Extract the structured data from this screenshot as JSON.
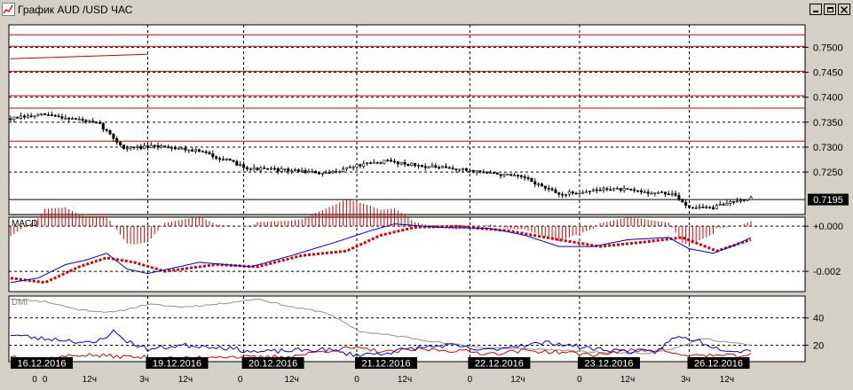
{
  "window": {
    "title": "График AUD /USD  ЧАС",
    "minimize_label": "_",
    "maximize_label": "□",
    "close_label": "×"
  },
  "colors": {
    "background": "#d4d0c8",
    "panel_background": "#ffffff",
    "resistance_line": "#cc0000",
    "candles": "#000000",
    "macd_line": "#0000cc",
    "macd_signal": "#dd0000",
    "macd_histogram": "#dd0000",
    "dmi_adx": "#909090",
    "dmi_plus": "#0000cc",
    "dmi_minus": "#dd0000",
    "date_label_bg": "#000000",
    "date_label_text": "#ffffff"
  },
  "chart_data": {
    "type": "candlestick",
    "symbol": "AUD/USD",
    "timeframe": "ЧАС",
    "price_panel": {
      "ylim": [
        0.7165,
        0.7545
      ],
      "tick_labels": [
        "0.7500",
        "0.7450",
        "0.7400",
        "0.7350",
        "0.7300",
        "0.7250"
      ],
      "tick_values": [
        0.75,
        0.745,
        0.74,
        0.735,
        0.73,
        0.725
      ],
      "current_price_label": "0.7195",
      "current_price": 0.7195,
      "horizontal_levels": [
        0.7525,
        0.7502,
        0.7452,
        0.7403,
        0.7378,
        0.7312
      ],
      "trendline": {
        "from": {
          "bar": 0,
          "price": 0.7477
        },
        "to": {
          "bar": 40,
          "price": 0.7486
        }
      },
      "anchors": [
        [
          0,
          0.7357
        ],
        [
          10,
          0.7365
        ],
        [
          20,
          0.7355
        ],
        [
          26,
          0.7345
        ],
        [
          33,
          0.7298
        ],
        [
          45,
          0.7302
        ],
        [
          55,
          0.7292
        ],
        [
          70,
          0.7257
        ],
        [
          85,
          0.7252
        ],
        [
          92,
          0.7246
        ],
        [
          100,
          0.7262
        ],
        [
          110,
          0.7272
        ],
        [
          120,
          0.7262
        ],
        [
          130,
          0.7256
        ],
        [
          138,
          0.725
        ],
        [
          150,
          0.7238
        ],
        [
          160,
          0.7205
        ],
        [
          175,
          0.7217
        ],
        [
          185,
          0.721
        ],
        [
          193,
          0.7206
        ],
        [
          198,
          0.718
        ],
        [
          205,
          0.7178
        ],
        [
          212,
          0.7195
        ],
        [
          216,
          0.7197
        ]
      ]
    },
    "macd_panel": {
      "label": "MACD",
      "ylim": [
        -0.0029,
        0.0004
      ],
      "tick_labels": [
        "+0.000",
        "-0.002"
      ],
      "tick_values": [
        0.0,
        -0.002
      ],
      "macd_anchors": [
        [
          0,
          -0.0025
        ],
        [
          8,
          -0.0023
        ],
        [
          16,
          -0.0017
        ],
        [
          22,
          -0.0015
        ],
        [
          28,
          -0.0012
        ],
        [
          34,
          -0.0019
        ],
        [
          40,
          -0.0021
        ],
        [
          55,
          -0.0016
        ],
        [
          70,
          -0.0018
        ],
        [
          82,
          -0.0013
        ],
        [
          95,
          -0.0007
        ],
        [
          105,
          -0.0002
        ],
        [
          112,
          0.0001
        ],
        [
          125,
          -5e-05
        ],
        [
          140,
          -0.0001
        ],
        [
          150,
          -0.0004
        ],
        [
          160,
          -0.0009
        ],
        [
          170,
          -0.0009
        ],
        [
          180,
          -0.0006
        ],
        [
          192,
          -0.0005
        ],
        [
          198,
          -0.001
        ],
        [
          205,
          -0.0012
        ],
        [
          212,
          -0.0008
        ],
        [
          216,
          -0.0005
        ]
      ],
      "signal_anchors": [
        [
          0,
          -0.0023
        ],
        [
          10,
          -0.0025
        ],
        [
          20,
          -0.0018
        ],
        [
          28,
          -0.0014
        ],
        [
          36,
          -0.0016
        ],
        [
          45,
          -0.002
        ],
        [
          60,
          -0.0017
        ],
        [
          72,
          -0.0018
        ],
        [
          85,
          -0.0013
        ],
        [
          98,
          -0.0011
        ],
        [
          108,
          -0.0004
        ],
        [
          118,
          -5e-05
        ],
        [
          130,
          0.0
        ],
        [
          145,
          -0.0002
        ],
        [
          160,
          -0.0006
        ],
        [
          172,
          -0.0009
        ],
        [
          185,
          -0.0007
        ],
        [
          196,
          -0.0005
        ],
        [
          206,
          -0.0011
        ],
        [
          216,
          -0.0006
        ]
      ]
    },
    "dmi_panel": {
      "label": "DMI",
      "ylim": [
        8,
        56
      ],
      "tick_labels": [
        "40",
        "20"
      ],
      "tick_values": [
        40,
        20
      ],
      "adx_anchors": [
        [
          0,
          54
        ],
        [
          10,
          52
        ],
        [
          20,
          46
        ],
        [
          30,
          44
        ],
        [
          40,
          50
        ],
        [
          50,
          48
        ],
        [
          60,
          50
        ],
        [
          72,
          54
        ],
        [
          82,
          48
        ],
        [
          92,
          44
        ],
        [
          102,
          30
        ],
        [
          115,
          26
        ],
        [
          128,
          21
        ],
        [
          140,
          18
        ],
        [
          155,
          17
        ],
        [
          170,
          15
        ],
        [
          185,
          14
        ],
        [
          194,
          18
        ],
        [
          202,
          25
        ],
        [
          210,
          22
        ],
        [
          216,
          20
        ]
      ],
      "plus_anchors": [
        [
          0,
          28
        ],
        [
          8,
          25
        ],
        [
          16,
          24
        ],
        [
          24,
          21
        ],
        [
          30,
          30
        ],
        [
          34,
          23
        ],
        [
          40,
          17
        ],
        [
          50,
          20
        ],
        [
          60,
          19
        ],
        [
          72,
          15
        ],
        [
          82,
          16
        ],
        [
          92,
          17
        ],
        [
          100,
          13
        ],
        [
          108,
          14
        ],
        [
          118,
          18
        ],
        [
          128,
          20
        ],
        [
          138,
          16
        ],
        [
          148,
          20
        ],
        [
          158,
          22
        ],
        [
          168,
          18
        ],
        [
          178,
          16
        ],
        [
          188,
          15
        ],
        [
          194,
          26
        ],
        [
          200,
          24
        ],
        [
          206,
          18
        ],
        [
          212,
          16
        ],
        [
          216,
          16
        ]
      ],
      "minus_anchors": [
        [
          0,
          12
        ],
        [
          10,
          10
        ],
        [
          20,
          13
        ],
        [
          30,
          12
        ],
        [
          40,
          11
        ],
        [
          50,
          10
        ],
        [
          60,
          12
        ],
        [
          72,
          11
        ],
        [
          82,
          12
        ],
        [
          92,
          16
        ],
        [
          100,
          18
        ],
        [
          110,
          15
        ],
        [
          120,
          17
        ],
        [
          130,
          16
        ],
        [
          140,
          14
        ],
        [
          150,
          16
        ],
        [
          160,
          15
        ],
        [
          170,
          13
        ],
        [
          180,
          16
        ],
        [
          190,
          17
        ],
        [
          196,
          12
        ],
        [
          202,
          13
        ],
        [
          210,
          12
        ],
        [
          216,
          13
        ]
      ]
    },
    "x_axis": {
      "bar_count": 217,
      "date_labels": [
        {
          "text": "16.12.2016",
          "bar": 0
        },
        {
          "text": "19.12.2016",
          "bar": 40
        },
        {
          "text": "20.12.2016",
          "bar": 68
        },
        {
          "text": "21.12.2016",
          "bar": 101
        },
        {
          "text": "22.12.2016",
          "bar": 134
        },
        {
          "text": "23.12.2016",
          "bar": 166
        },
        {
          "text": "26.12.2016",
          "bar": 198
        }
      ],
      "hour_labels": [
        {
          "text": "0",
          "bar": 7
        },
        {
          "text": "0",
          "bar": 10
        },
        {
          "text": "12ч",
          "bar": 23
        },
        {
          "text": "3ч",
          "bar": 39
        },
        {
          "text": "12ч",
          "bar": 51
        },
        {
          "text": "0",
          "bar": 67
        },
        {
          "text": "12ч",
          "bar": 82
        },
        {
          "text": "0",
          "bar": 101
        },
        {
          "text": "12ч",
          "bar": 115
        },
        {
          "text": "0",
          "bar": 134
        },
        {
          "text": "12ч",
          "bar": 148
        },
        {
          "text": "0",
          "bar": 166
        },
        {
          "text": "12ч",
          "bar": 180
        },
        {
          "text": "3ч",
          "bar": 197
        },
        {
          "text": "12ч",
          "bar": 209
        }
      ]
    }
  }
}
